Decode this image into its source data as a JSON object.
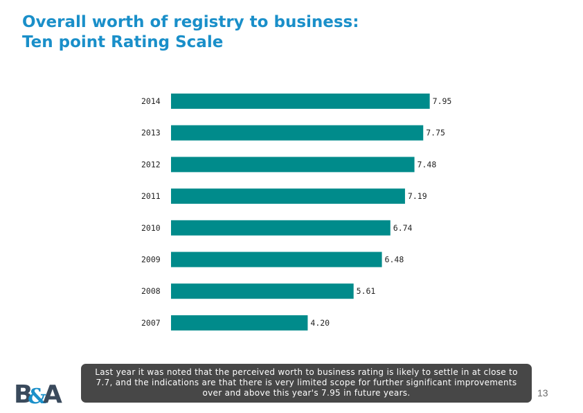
{
  "title": {
    "line1": "Overall worth of registry to business:",
    "line2": "Ten point Rating Scale"
  },
  "colors": {
    "title": "#1a8fc9",
    "bar": "#008b8b",
    "callout_bg": "#474747",
    "logo_primary": "#3a4a5c",
    "logo_accent": "#1a8fc9"
  },
  "chart_data": {
    "type": "bar",
    "orientation": "horizontal",
    "categories": [
      "2014",
      "2013",
      "2012",
      "2011",
      "2010",
      "2009",
      "2008",
      "2007"
    ],
    "values": [
      7.95,
      7.75,
      7.48,
      7.19,
      6.74,
      6.48,
      5.61,
      4.2
    ],
    "value_labels": [
      "7.95",
      "7.75",
      "7.48",
      "7.19",
      "6.74",
      "6.48",
      "5.61",
      "4.20"
    ],
    "xlim": [
      0,
      10
    ],
    "grid": false,
    "legend": "none"
  },
  "callout": {
    "text": "Last year it was noted that the perceived worth to business rating is likely to settle in at close to 7.7, and the indications are that there is very limited scope for further significant improvements over and above this year's 7.95 in future years."
  },
  "page_number": "13",
  "logo": {
    "text": "B&A",
    "icon": "ba-logo-icon"
  }
}
